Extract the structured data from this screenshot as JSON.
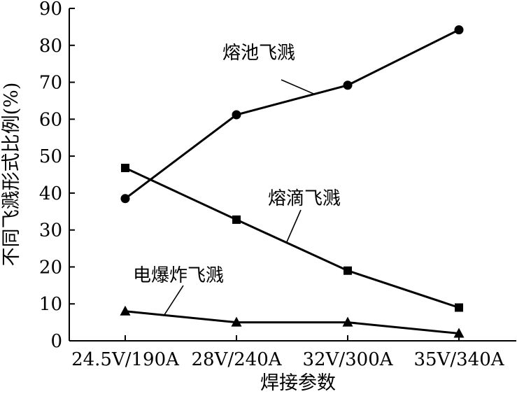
{
  "chart_data": {
    "type": "line",
    "categories": [
      "24.5V/190A",
      "28V/240A",
      "32V/300A",
      "35V/340A"
    ],
    "series": [
      {
        "name": "熔池飞溅",
        "marker": "circle",
        "values": [
          38.5,
          61.2,
          69.2,
          84.2
        ]
      },
      {
        "name": "熔滴飞溅",
        "marker": "square",
        "values": [
          46.8,
          32.8,
          19.0,
          9.0
        ]
      },
      {
        "name": "电爆炸飞溅",
        "marker": "triangle",
        "values": [
          8.0,
          5.0,
          5.0,
          2.0
        ]
      }
    ],
    "xlabel": "焊接参数",
    "ylabel": "不同飞溅形式比例(%)",
    "ylim": [
      0,
      90
    ],
    "yticks": [
      0,
      10,
      20,
      30,
      40,
      50,
      60,
      70,
      80,
      90
    ],
    "grid": false,
    "legend": "none"
  }
}
